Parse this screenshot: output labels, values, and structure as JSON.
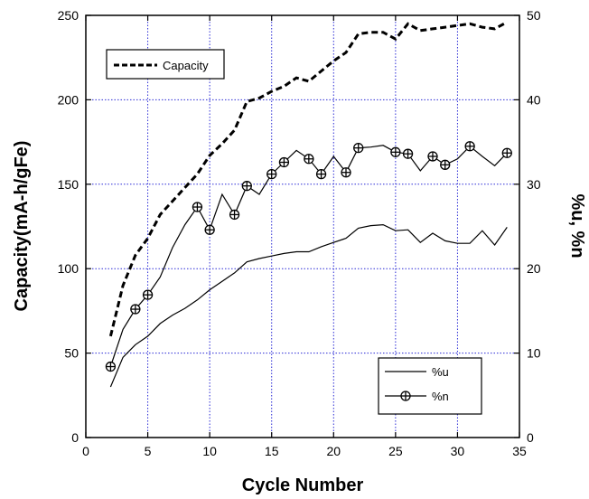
{
  "chart_data": {
    "type": "line",
    "x_axis": {
      "label": "Cycle Number",
      "range": [
        0,
        35
      ],
      "ticks": [
        0,
        5,
        10,
        15,
        20,
        25,
        30,
        35
      ]
    },
    "y_axis_left": {
      "label": "Capacity(mA-h/gFe)",
      "range": [
        0,
        250
      ],
      "ticks": [
        0,
        50,
        100,
        150,
        200,
        250
      ]
    },
    "y_axis_right": {
      "label": "%u, %n",
      "range": [
        0,
        50
      ],
      "ticks": [
        0,
        10,
        20,
        30,
        40,
        50
      ]
    },
    "grid": true,
    "grid_style": "dotted-blue",
    "series": [
      {
        "name": "Capacity",
        "axis": "left",
        "line_style": "dashed",
        "marker": "none",
        "color": "#000000",
        "x": [
          2,
          3,
          4,
          5,
          6,
          7,
          8,
          9,
          10,
          11,
          12,
          13,
          14,
          15,
          16,
          17,
          18,
          19,
          20,
          21,
          22,
          23,
          24,
          25,
          26,
          27,
          28,
          29,
          30,
          31,
          32,
          33,
          34
        ],
        "y": [
          60,
          90,
          108,
          118,
          132,
          140,
          148,
          156,
          167,
          174,
          182,
          199,
          201,
          205,
          208,
          213,
          211,
          217,
          223,
          228,
          239,
          240,
          240,
          236,
          245,
          241,
          242,
          243,
          244,
          245,
          243,
          242,
          246
        ]
      },
      {
        "name": "%u",
        "axis": "right",
        "line_style": "solid",
        "marker": "none",
        "color": "#000000",
        "x": [
          2,
          3,
          4,
          5,
          6,
          7,
          8,
          9,
          10,
          11,
          12,
          13,
          14,
          15,
          16,
          17,
          18,
          19,
          20,
          21,
          22,
          23,
          24,
          25,
          26,
          27,
          28,
          29,
          30,
          31,
          32,
          33,
          34
        ],
        "y": [
          6,
          9.5,
          11,
          12,
          13.5,
          14.5,
          15.3,
          16.3,
          17.5,
          18.5,
          19.5,
          20.8,
          21.2,
          21.5,
          21.8,
          22,
          22,
          22.6,
          23.1,
          23.6,
          24.8,
          25.1,
          25.2,
          24.5,
          24.6,
          23.1,
          24.2,
          23.3,
          23,
          23,
          24.5,
          22.8,
          24.9
        ]
      },
      {
        "name": "%n",
        "axis": "right",
        "line_style": "solid",
        "marker": "circle-plus",
        "color": "#000000",
        "x": [
          2,
          4,
          5,
          9,
          10,
          12,
          13,
          15,
          16,
          18,
          19,
          21,
          22,
          25,
          26,
          28,
          29,
          31,
          34
        ],
        "y": [
          8.4,
          15.2,
          16.9,
          27.3,
          24.6,
          26.4,
          29.8,
          31.2,
          32.6,
          33,
          31.2,
          31.4,
          34.3,
          33.8,
          33.6,
          33.3,
          32.3,
          34.5,
          33.7
        ],
        "line_x": [
          2,
          3,
          4,
          5,
          6,
          7,
          8,
          9,
          10,
          11,
          12,
          13,
          14,
          15,
          16,
          17,
          18,
          19,
          20,
          21,
          22,
          23,
          24,
          25,
          26,
          27,
          28,
          29,
          30,
          31,
          32,
          33,
          34
        ],
        "line_y": [
          8.4,
          12.8,
          15.2,
          16.9,
          19,
          22.5,
          25.2,
          27.3,
          24.6,
          28.8,
          26.4,
          29.8,
          28.8,
          31.2,
          32.6,
          34,
          33,
          31.2,
          33.3,
          31.4,
          34.3,
          34.4,
          34.6,
          33.8,
          33.6,
          31.6,
          33.3,
          32.3,
          33,
          34.5,
          33.3,
          32.2,
          33.7
        ]
      }
    ],
    "legends": [
      {
        "entries": [
          "Capacity"
        ],
        "placement": "top-left"
      },
      {
        "entries": [
          "%u",
          "%n"
        ],
        "placement": "bottom-right"
      }
    ]
  }
}
